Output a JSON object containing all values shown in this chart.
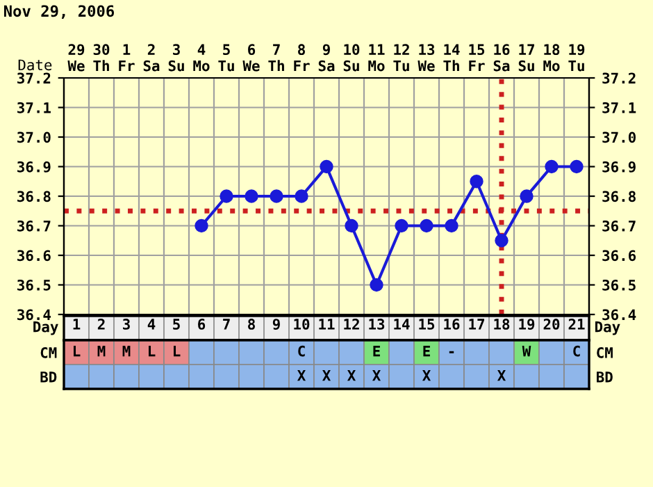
{
  "chart_data": [
    {
      "type": "line",
      "title": "Nov 29, 2006",
      "xlabel": "Date",
      "categories": [
        "29\nWe",
        "30\nTh",
        "1\nFr",
        "2\nSa",
        "3\nSu",
        "4\nMo",
        "5\nTu",
        "6\nWe",
        "7\nTh",
        "8\nFr",
        "9\nSa",
        "10\nSu",
        "11\nMo",
        "12\nTu",
        "13\nWe",
        "14\nTh",
        "15\nFr",
        "16\nSa",
        "17\nSu",
        "18\nMo",
        "19\nTu"
      ],
      "series": [
        {
          "color": "#1a1ad8",
          "values": [
            null,
            null,
            null,
            null,
            null,
            36.7,
            36.8,
            36.8,
            36.8,
            36.8,
            36.9,
            36.7,
            36.5,
            36.7,
            36.7,
            36.7,
            36.85,
            36.65,
            36.8,
            36.9,
            36.9
          ]
        }
      ],
      "ylim": [
        36.4,
        37.2
      ],
      "yticks": [
        36.4,
        36.5,
        36.6,
        36.7,
        36.8,
        36.9,
        {
          "value": 37,
          "label": "37.0"
        },
        37.1,
        37.2
      ],
      "y2lim": [
        36.4,
        37.2
      ],
      "y2ticks": [
        36.4,
        36.5,
        36.6,
        36.7,
        36.8,
        36.9,
        {
          "value": 37,
          "label": "37.0"
        },
        37.1,
        37.2
      ],
      "ref_lines": [
        {
          "axis": "y",
          "value": 36.75,
          "color": "#cc2020",
          "line_style": "dotted"
        },
        {
          "axis": "x",
          "value": "16\nSa",
          "color": "#cc2020",
          "line_style": "dotted"
        }
      ],
      "grid": true,
      "marker": "circle",
      "line_style": "solid"
    },
    {
      "type": "heatmap",
      "xlabel": "Day",
      "categories": [
        "1",
        "2",
        "3",
        "4",
        "5",
        "6",
        "7",
        "8",
        "9",
        "10",
        "11",
        "12",
        "13",
        "14",
        "15",
        "16",
        "17",
        "18",
        "19",
        "20",
        "21"
      ],
      "y_categories": [
        "CM",
        "BD"
      ],
      "y2_categories": [
        "CM",
        "BD"
      ],
      "cells": [
        [
          null,
          null,
          null,
          null,
          null,
          null,
          null,
          null,
          null,
          null,
          null,
          null,
          null,
          null,
          null,
          null,
          null,
          null,
          null,
          null,
          null
        ],
        [
          null,
          null,
          null,
          null,
          null,
          null,
          null,
          null,
          null,
          null,
          null,
          null,
          null,
          null,
          null,
          null,
          null,
          null,
          null,
          null,
          null
        ]
      ],
      "cell_labels": [
        [
          "L",
          "M",
          "M",
          "L",
          "L",
          null,
          null,
          null,
          null,
          "C",
          null,
          null,
          "E",
          null,
          "E",
          "-",
          null,
          null,
          "W",
          null,
          "C"
        ],
        [
          null,
          null,
          null,
          null,
          null,
          null,
          null,
          null,
          null,
          "X",
          "X",
          "X",
          "X",
          null,
          "X",
          null,
          null,
          "X",
          null,
          null,
          null
        ]
      ],
      "colors": [
        [
          "#e88a8a",
          "#e88a8a",
          "#e88a8a",
          "#e88a8a",
          "#e88a8a",
          "#8fb6ea",
          "#8fb6ea",
          "#8fb6ea",
          "#8fb6ea",
          "#8fb6ea",
          "#8fb6ea",
          "#8fb6ea",
          "#7de07d",
          "#8fb6ea",
          "#7de07d",
          "#8fb6ea",
          "#8fb6ea",
          "#8fb6ea",
          "#7de07d",
          "#8fb6ea",
          "#8fb6ea"
        ],
        [
          "#8fb6ea",
          "#8fb6ea",
          "#8fb6ea",
          "#8fb6ea",
          "#8fb6ea",
          "#8fb6ea",
          "#8fb6ea",
          "#8fb6ea",
          "#8fb6ea",
          "#8fb6ea",
          "#8fb6ea",
          "#8fb6ea",
          "#8fb6ea",
          "#8fb6ea",
          "#8fb6ea",
          "#8fb6ea",
          "#8fb6ea",
          "#8fb6ea",
          "#8fb6ea",
          "#8fb6ea",
          "#8fb6ea"
        ]
      ]
    }
  ]
}
